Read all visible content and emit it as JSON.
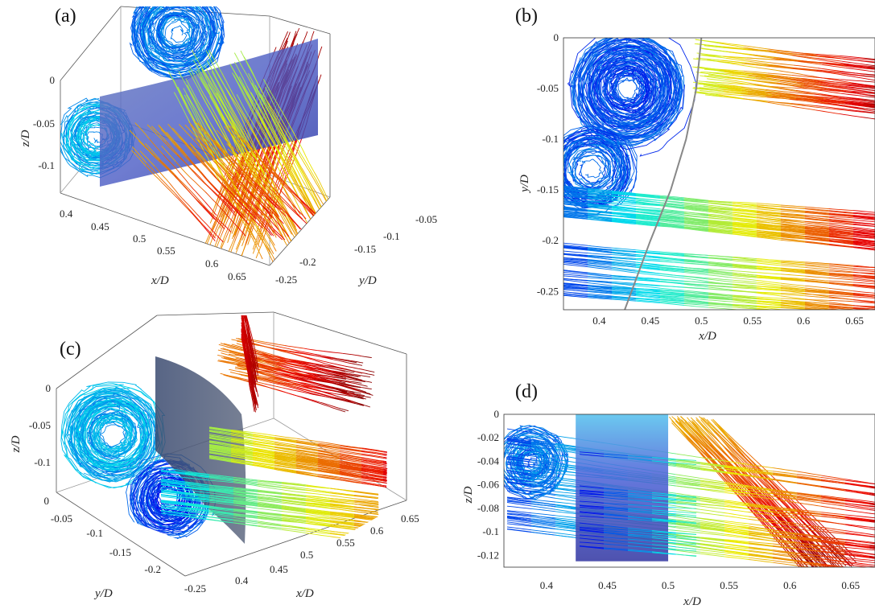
{
  "panel_labels": [
    "(a)",
    "(b)",
    "(c)",
    "(d)"
  ],
  "chart_data": [
    {
      "panel": "(a)",
      "type": "line",
      "view": "3d",
      "xlabel": "x/D",
      "ylabel": "y/D",
      "zlabel": "z/D",
      "x_ticks": [
        "0.4",
        "0.45",
        "0.5",
        "0.55",
        "0.6",
        "0.65"
      ],
      "y_ticks": [
        "-0.05",
        "-0.1",
        "-0.15",
        "-0.2",
        "-0.25"
      ],
      "z_ticks": [
        "0",
        "-0.05",
        "-0.1"
      ],
      "surface": "curved translucent blue plane",
      "streamline_colormap": "jet"
    },
    {
      "panel": "(b)",
      "type": "line",
      "view": "top (x-y)",
      "xlabel": "x/D",
      "ylabel": "y/D",
      "x_ticks": [
        "0.4",
        "0.45",
        "0.5",
        "0.55",
        "0.6",
        "0.65"
      ],
      "y_ticks": [
        "0",
        "-0.05",
        "-0.1",
        "-0.15",
        "-0.2",
        "-0.25"
      ],
      "xlim": [
        0.365,
        0.67
      ],
      "ylim": [
        -0.268,
        0
      ],
      "blade_arc_x": [
        0.5,
        0.495,
        0.485,
        0.47,
        0.45,
        0.425
      ],
      "blade_arc_y": [
        0,
        -0.05,
        -0.1,
        -0.15,
        -0.2,
        -0.268
      ],
      "streamline_colormap": "jet"
    },
    {
      "panel": "(c)",
      "type": "line",
      "view": "3d",
      "xlabel": "x/D",
      "ylabel": "y/D",
      "zlabel": "z/D",
      "x_ticks": [
        "0.4",
        "0.45",
        "0.5",
        "0.55",
        "0.6",
        "0.65"
      ],
      "y_ticks": [
        "0",
        "-0.05",
        "-0.1",
        "-0.15",
        "-0.2",
        "-0.25"
      ],
      "z_ticks": [
        "0",
        "-0.05",
        "-0.1"
      ],
      "surface": "curved translucent dark plane",
      "streamline_colormap": "jet"
    },
    {
      "panel": "(d)",
      "type": "line",
      "view": "side (x-z)",
      "xlabel": "x/D",
      "ylabel": "z/D",
      "x_ticks": [
        "0.4",
        "0.45",
        "0.5",
        "0.55",
        "0.6",
        "0.65"
      ],
      "y_ticks": [
        "0",
        "-0.02",
        "-0.04",
        "-0.06",
        "-0.08",
        "-0.1",
        "-0.12"
      ],
      "xlim": [
        0.365,
        0.67
      ],
      "ylim": [
        -0.13,
        0
      ],
      "blade_box_x": [
        0.424,
        0.5
      ],
      "blade_box_z": [
        -0.125,
        0
      ],
      "streamline_colormap": "jet"
    }
  ]
}
